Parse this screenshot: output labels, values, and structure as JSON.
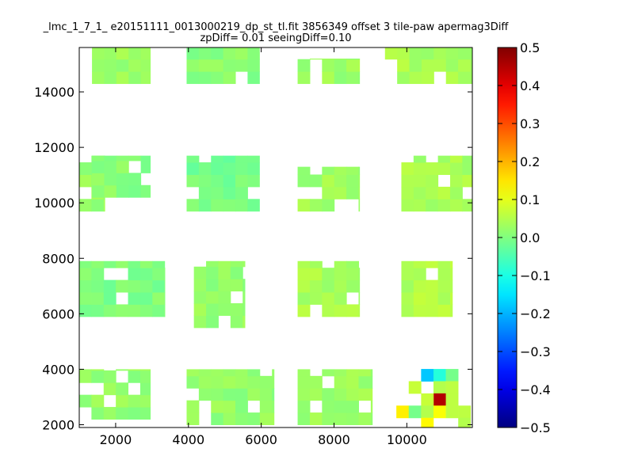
{
  "chart_data": {
    "type": "heatmap",
    "title_line1": "_lmc_1_7_1_ e20151111_0013000219_dp_st_tl.fit 3856349 offset 3 tile-paw apermag3Diff",
    "title_line2": "zpDiff= 0.01 seeingDiff=0.10",
    "xlabel": "",
    "ylabel": "",
    "xlim": [
      1000,
      11800
    ],
    "ylim": [
      1900,
      15600
    ],
    "x_ticks": [
      2000,
      4000,
      6000,
      8000,
      10000
    ],
    "y_ticks": [
      2000,
      4000,
      6000,
      8000,
      10000,
      12000,
      14000
    ],
    "grid": false,
    "colormap": "jet",
    "colorbar": {
      "range": [
        -0.5,
        0.5
      ],
      "ticks": [
        "0.5",
        "0.4",
        "0.3",
        "0.2",
        "0.1",
        "0.0",
        "−0.1",
        "−0.2",
        "−0.3",
        "−0.4",
        "−0.5"
      ]
    },
    "cell_size": [
      335,
      440
    ],
    "base_value": 0.01,
    "blocks": [
      {
        "x": [
          1350,
          2950
        ],
        "y": [
          14300,
          15600
        ],
        "value": 0.03
      },
      {
        "x": [
          3950,
          5950
        ],
        "y": [
          14300,
          15600
        ],
        "value": 0.01
      },
      {
        "x": [
          7000,
          8700
        ],
        "y": [
          14300,
          15200
        ],
        "value": 0.03
      },
      {
        "x": [
          9400,
          11800
        ],
        "y": [
          14300,
          15600
        ],
        "value": 0.04
      },
      {
        "x": [
          1000,
          1700
        ],
        "y": [
          9700,
          11700
        ],
        "value": 0.02
      },
      {
        "x": [
          1350,
          2950
        ],
        "y": [
          10200,
          11700
        ],
        "value": 0.01
      },
      {
        "x": [
          3950,
          5950
        ],
        "y": [
          9700,
          11700
        ],
        "value": -0.01
      },
      {
        "x": [
          7000,
          8700
        ],
        "y": [
          9700,
          11300
        ],
        "value": 0.03
      },
      {
        "x": [
          9850,
          11800
        ],
        "y": [
          9700,
          11700
        ],
        "value": 0.04
      },
      {
        "x": [
          1000,
          3350
        ],
        "y": [
          5900,
          7900
        ],
        "value": 0.0
      },
      {
        "x": [
          4150,
          5550
        ],
        "y": [
          5500,
          7900
        ],
        "value": 0.02
      },
      {
        "x": [
          7000,
          8700
        ],
        "y": [
          5900,
          7900
        ],
        "value": 0.04
      },
      {
        "x": [
          9850,
          11250
        ],
        "y": [
          5900,
          7900
        ],
        "value": 0.05
      },
      {
        "x": [
          1000,
          2950
        ],
        "y": [
          2200,
          4000
        ],
        "value": 0.02
      },
      {
        "x": [
          3950,
          6350
        ],
        "y": [
          2000,
          4000
        ],
        "value": 0.02
      },
      {
        "x": [
          7000,
          9050
        ],
        "y": [
          2000,
          4000
        ],
        "value": 0.03
      }
    ],
    "special_cells": [
      {
        "x": 10560,
        "y": 3790,
        "value": -0.18
      },
      {
        "x": 10900,
        "y": 3790,
        "value": -0.09
      },
      {
        "x": 11240,
        "y": 3790,
        "value": -0.01
      },
      {
        "x": 10220,
        "y": 3350,
        "value": 0.07
      },
      {
        "x": 10900,
        "y": 3350,
        "value": 0.05
      },
      {
        "x": 11240,
        "y": 3350,
        "value": 0.06
      },
      {
        "x": 10900,
        "y": 2910,
        "value": 0.45
      },
      {
        "x": 10560,
        "y": 2910,
        "value": 0.07
      },
      {
        "x": 11240,
        "y": 2910,
        "value": 0.06
      },
      {
        "x": 9880,
        "y": 2470,
        "value": 0.14
      },
      {
        "x": 10220,
        "y": 2470,
        "value": -0.01
      },
      {
        "x": 10560,
        "y": 2470,
        "value": 0.05
      },
      {
        "x": 10900,
        "y": 2470,
        "value": 0.12
      },
      {
        "x": 11240,
        "y": 2470,
        "value": 0.06
      },
      {
        "x": 10560,
        "y": 2030,
        "value": 0.13
      },
      {
        "x": 11580,
        "y": 2470,
        "value": 0.06
      },
      {
        "x": 11580,
        "y": 2030,
        "value": 0.05
      }
    ]
  }
}
